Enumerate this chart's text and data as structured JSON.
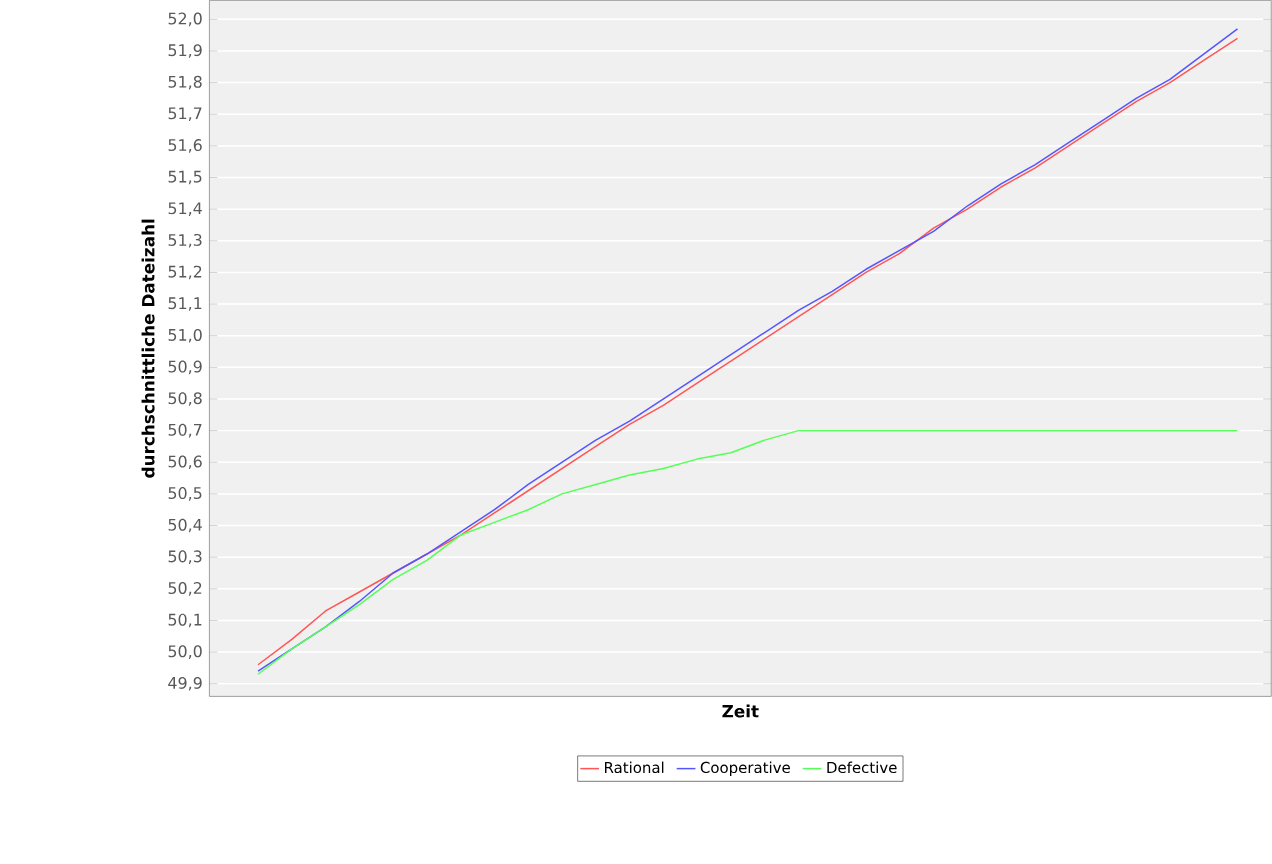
{
  "chart_data": {
    "type": "line",
    "xlabel": "Zeit",
    "ylabel": "durchschnittliche Dateizahl",
    "categories": [
      null,
      null,
      null,
      null,
      null,
      null,
      null,
      null,
      null,
      null,
      null,
      null,
      null,
      null,
      null,
      null,
      null,
      null,
      null,
      null,
      null,
      null,
      null,
      null,
      null,
      null,
      null,
      null,
      null,
      null
    ],
    "series": [
      {
        "name": "Rational",
        "color": "#ff5555",
        "values": [
          49.96,
          50.04,
          50.13,
          50.19,
          50.25,
          50.31,
          50.37,
          50.44,
          50.51,
          50.58,
          50.65,
          50.72,
          50.78,
          50.85,
          50.92,
          50.99,
          51.06,
          51.13,
          51.2,
          51.26,
          51.34,
          51.4,
          51.47,
          51.53,
          51.6,
          51.67,
          51.74,
          51.8,
          51.87,
          51.94
        ]
      },
      {
        "name": "Cooperative",
        "color": "#5555ff",
        "values": [
          49.94,
          50.01,
          50.08,
          50.16,
          50.25,
          50.31,
          50.38,
          50.45,
          50.53,
          50.6,
          50.67,
          50.73,
          50.8,
          50.87,
          50.94,
          51.01,
          51.08,
          51.14,
          51.21,
          51.27,
          51.33,
          51.41,
          51.48,
          51.54,
          51.61,
          51.68,
          51.75,
          51.81,
          51.89,
          51.97
        ]
      },
      {
        "name": "Defective",
        "color": "#55ff55",
        "values": [
          49.93,
          50.01,
          50.08,
          50.15,
          50.23,
          50.29,
          50.37,
          50.41,
          50.45,
          50.5,
          50.53,
          50.56,
          50.58,
          50.61,
          50.63,
          50.67,
          50.7,
          50.7,
          50.7,
          50.7,
          50.7,
          50.7,
          50.7,
          50.7,
          50.7,
          50.7,
          50.7,
          50.7,
          50.7,
          50.7
        ]
      }
    ],
    "ylim": [
      49.86,
      52.06
    ],
    "yticks": [
      {
        "value": 49.9,
        "label": "49,9"
      },
      {
        "value": 50.0,
        "label": "50,0"
      },
      {
        "value": 50.1,
        "label": "50,1"
      },
      {
        "value": 50.2,
        "label": "50,2"
      },
      {
        "value": 50.3,
        "label": "50,3"
      },
      {
        "value": 50.4,
        "label": "50,4"
      },
      {
        "value": 50.5,
        "label": "50,5"
      },
      {
        "value": 50.6,
        "label": "50,6"
      },
      {
        "value": 50.7,
        "label": "50,7"
      },
      {
        "value": 50.8,
        "label": "50,8"
      },
      {
        "value": 50.9,
        "label": "50,9"
      },
      {
        "value": 51.0,
        "label": "51,0"
      },
      {
        "value": 51.1,
        "label": "51,1"
      },
      {
        "value": 51.2,
        "label": "51,2"
      },
      {
        "value": 51.3,
        "label": "51,3"
      },
      {
        "value": 51.4,
        "label": "51,4"
      },
      {
        "value": 51.5,
        "label": "51,5"
      },
      {
        "value": 51.6,
        "label": "51,6"
      },
      {
        "value": 51.7,
        "label": "51,7"
      },
      {
        "value": 51.8,
        "label": "51,8"
      },
      {
        "value": 51.9,
        "label": "51,9"
      },
      {
        "value": 52.0,
        "label": "52,0"
      }
    ],
    "tick_labels": "y",
    "grid": "y",
    "legend": "bottom",
    "marker": "none",
    "line_style": "solid"
  }
}
